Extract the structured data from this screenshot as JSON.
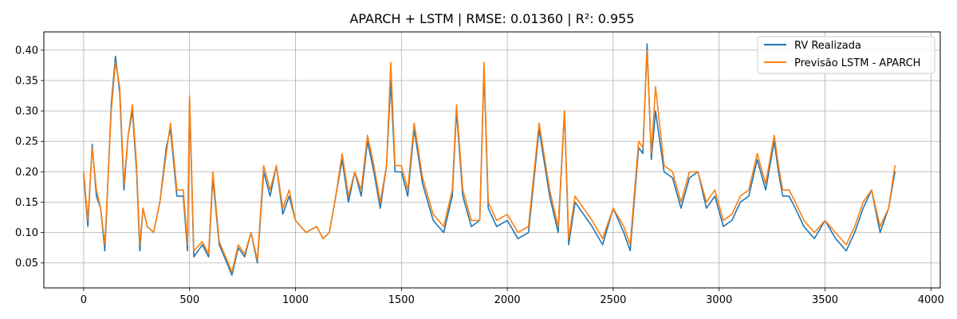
{
  "chart_data": {
    "type": "line",
    "title": "APARCH + LSTM | RMSE: 0.01360 | R²: 0.955",
    "xlabel": "",
    "ylabel": "",
    "xlim": [
      -188,
      4044
    ],
    "ylim": [
      0.009,
      0.43
    ],
    "xticks": [
      0,
      500,
      1000,
      1500,
      2000,
      2500,
      3000,
      3500,
      4000
    ],
    "xtick_labels": [
      "0",
      "500",
      "1000",
      "1500",
      "2000",
      "2500",
      "3000",
      "3500",
      "4000"
    ],
    "yticks": [
      0.05,
      0.1,
      0.15,
      0.2,
      0.25,
      0.3,
      0.35,
      0.4
    ],
    "ytick_labels": [
      "0.05",
      "0.10",
      "0.15",
      "0.20",
      "0.25",
      "0.30",
      "0.35",
      "0.40"
    ],
    "grid": true,
    "legend_position": "top-right",
    "x_anchors": [
      0,
      20,
      40,
      60,
      80,
      100,
      130,
      150,
      170,
      190,
      210,
      230,
      250,
      265,
      280,
      300,
      330,
      360,
      390,
      410,
      440,
      470,
      490,
      500,
      520,
      560,
      590,
      610,
      640,
      670,
      700,
      730,
      760,
      790,
      820,
      850,
      880,
      910,
      940,
      970,
      1000,
      1050,
      1100,
      1130,
      1160,
      1190,
      1220,
      1250,
      1280,
      1310,
      1340,
      1370,
      1400,
      1430,
      1450,
      1470,
      1500,
      1530,
      1560,
      1600,
      1650,
      1700,
      1740,
      1760,
      1790,
      1830,
      1870,
      1890,
      1910,
      1950,
      2000,
      2050,
      2100,
      2150,
      2200,
      2240,
      2270,
      2290,
      2320,
      2360,
      2400,
      2450,
      2500,
      2550,
      2580,
      2620,
      2640,
      2660,
      2680,
      2700,
      2740,
      2780,
      2820,
      2860,
      2900,
      2940,
      2980,
      3020,
      3060,
      3100,
      3140,
      3180,
      3220,
      3260,
      3280,
      3300,
      3330,
      3360,
      3400,
      3450,
      3500,
      3550,
      3600,
      3640,
      3680,
      3720,
      3760,
      3800,
      3830,
      3850
    ],
    "series": [
      {
        "name": "RV Realizada",
        "color": "#1f77b4",
        "values": [
          0.195,
          0.11,
          0.245,
          0.16,
          0.14,
          0.07,
          0.31,
          0.39,
          0.33,
          0.17,
          0.26,
          0.3,
          0.2,
          0.07,
          0.14,
          0.11,
          0.1,
          0.15,
          0.24,
          0.27,
          0.16,
          0.16,
          0.07,
          0.32,
          0.06,
          0.08,
          0.06,
          0.19,
          0.08,
          0.055,
          0.03,
          0.075,
          0.06,
          0.1,
          0.05,
          0.2,
          0.16,
          0.21,
          0.13,
          0.16,
          0.12,
          0.1,
          0.11,
          0.09,
          0.1,
          0.16,
          0.22,
          0.15,
          0.2,
          0.16,
          0.25,
          0.2,
          0.14,
          0.21,
          0.35,
          0.2,
          0.2,
          0.16,
          0.27,
          0.18,
          0.12,
          0.1,
          0.16,
          0.3,
          0.16,
          0.11,
          0.12,
          0.37,
          0.14,
          0.11,
          0.12,
          0.09,
          0.1,
          0.27,
          0.16,
          0.1,
          0.3,
          0.08,
          0.15,
          0.13,
          0.11,
          0.08,
          0.14,
          0.1,
          0.07,
          0.24,
          0.23,
          0.41,
          0.22,
          0.3,
          0.2,
          0.19,
          0.14,
          0.19,
          0.2,
          0.14,
          0.16,
          0.11,
          0.12,
          0.15,
          0.16,
          0.22,
          0.17,
          0.25,
          0.2,
          0.16,
          0.16,
          0.14,
          0.11,
          0.09,
          0.12,
          0.09,
          0.07,
          0.1,
          0.14,
          0.17,
          0.1,
          0.14,
          0.2
        ]
      },
      {
        "name": "Previsão LSTM - APARCH",
        "color": "#ff7f0e",
        "values": [
          0.2,
          0.12,
          0.24,
          0.17,
          0.14,
          0.08,
          0.3,
          0.38,
          0.34,
          0.18,
          0.26,
          0.31,
          0.21,
          0.08,
          0.14,
          0.11,
          0.1,
          0.15,
          0.23,
          0.28,
          0.17,
          0.17,
          0.08,
          0.325,
          0.07,
          0.085,
          0.065,
          0.2,
          0.085,
          0.06,
          0.035,
          0.08,
          0.065,
          0.1,
          0.055,
          0.21,
          0.17,
          0.21,
          0.14,
          0.17,
          0.12,
          0.1,
          0.11,
          0.09,
          0.1,
          0.16,
          0.23,
          0.16,
          0.2,
          0.17,
          0.26,
          0.21,
          0.15,
          0.21,
          0.38,
          0.21,
          0.21,
          0.17,
          0.28,
          0.19,
          0.13,
          0.11,
          0.17,
          0.31,
          0.17,
          0.12,
          0.12,
          0.38,
          0.15,
          0.12,
          0.13,
          0.1,
          0.11,
          0.28,
          0.17,
          0.11,
          0.3,
          0.09,
          0.16,
          0.14,
          0.12,
          0.09,
          0.14,
          0.11,
          0.08,
          0.25,
          0.24,
          0.4,
          0.23,
          0.34,
          0.21,
          0.2,
          0.15,
          0.2,
          0.2,
          0.15,
          0.17,
          0.12,
          0.13,
          0.16,
          0.17,
          0.23,
          0.18,
          0.26,
          0.21,
          0.17,
          0.17,
          0.15,
          0.12,
          0.1,
          0.12,
          0.1,
          0.08,
          0.11,
          0.15,
          0.17,
          0.11,
          0.14,
          0.21
        ]
      }
    ]
  }
}
